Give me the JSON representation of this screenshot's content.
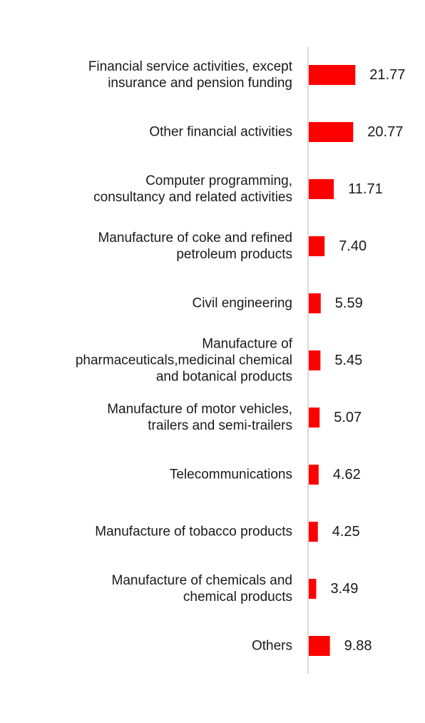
{
  "chart_data": {
    "type": "bar",
    "orientation": "horizontal",
    "categories": [
      [
        "Financial service activities, except",
        "insurance and pension funding"
      ],
      [
        "Other financial activities"
      ],
      [
        "Computer programming,",
        "consultancy and related activities"
      ],
      [
        "Manufacture of coke and refined",
        "petroleum products"
      ],
      [
        "Civil engineering"
      ],
      [
        "Manufacture of",
        "pharmaceuticals,medicinal chemical",
        "and botanical products"
      ],
      [
        "Manufacture of motor vehicles,",
        "trailers and semi-trailers"
      ],
      [
        "Telecommunications"
      ],
      [
        "Manufacture of tobacco products"
      ],
      [
        "Manufacture of chemicals and",
        "chemical products"
      ],
      [
        "Others"
      ]
    ],
    "values": [
      21.77,
      20.77,
      11.71,
      7.4,
      5.59,
      5.45,
      5.07,
      4.62,
      4.25,
      3.49,
      9.88
    ],
    "value_labels": [
      "21.77",
      "20.77",
      "11.71",
      "7.40",
      "5.59",
      "5.45",
      "5.07",
      "4.62",
      "4.25",
      "3.49",
      "9.88"
    ],
    "title": "",
    "xlabel": "",
    "ylabel": "",
    "bar_color": "#ff0000",
    "axis_color": "#d9d9d9",
    "grid": false,
    "legend": "none"
  }
}
